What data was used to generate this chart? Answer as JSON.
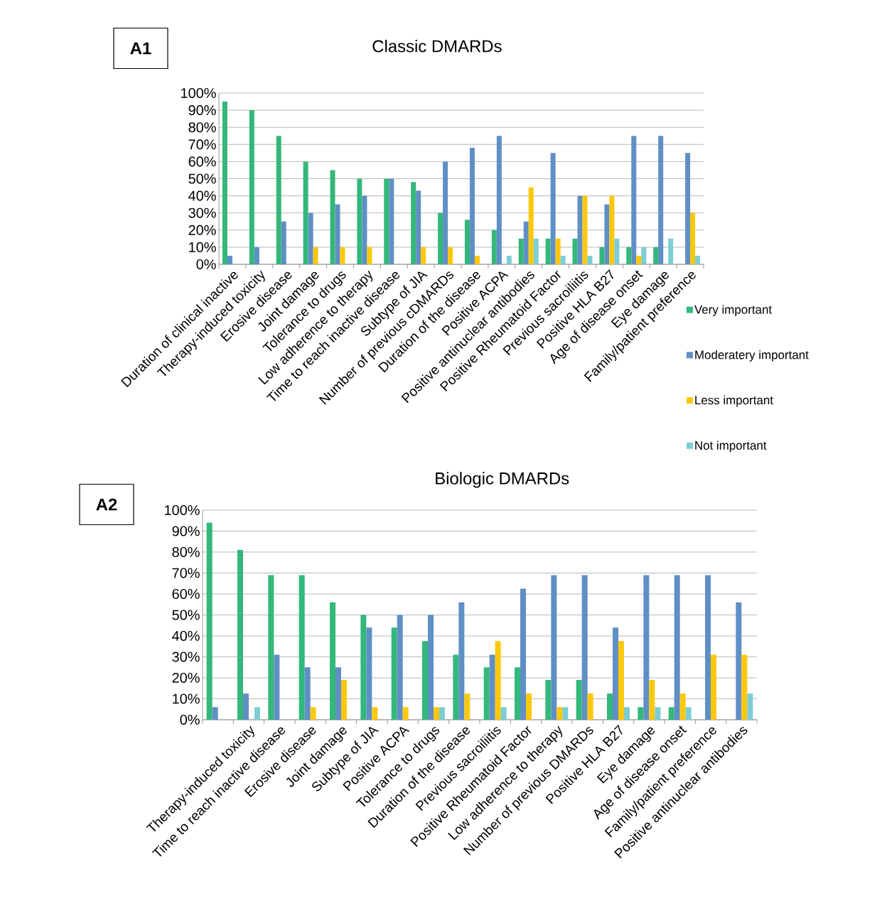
{
  "chart_data": [
    {
      "type": "bar",
      "title": "Classic DMARDs",
      "annotations": [
        "A1"
      ],
      "categories": [
        "Duration of clinical inactive",
        "Therapy-induced toxicity",
        "Erosive disease",
        "Joint damage",
        "Tolerance to drugs",
        "Low adherence to therapy",
        "Time to reach inactive disease",
        "Subtype of JIA",
        "Number of previous cDMARDs",
        "Duration of the disease",
        "Positive ACPA",
        "Positive antinuclear antibodies",
        "Positive Rheumatoid Factor",
        "Previous sacroiliitis",
        "Positive HLA B27",
        "Age of disease onset",
        "Eye damage",
        "Family/patient preference"
      ],
      "series": [
        {
          "name": "Very important",
          "color": "#33b87a",
          "values": [
            95,
            90,
            75,
            60,
            55,
            50,
            50,
            48,
            30,
            26,
            20,
            15,
            15,
            15,
            10,
            10,
            10,
            0
          ]
        },
        {
          "name": "Moderatery important",
          "color": "#5f8fc4",
          "values": [
            5,
            10,
            25,
            30,
            35,
            40,
            50,
            43,
            60,
            68,
            75,
            25,
            65,
            40,
            35,
            75,
            75,
            65
          ]
        },
        {
          "name": "Less important",
          "color": "#fcc80d",
          "values": [
            0,
            0,
            0,
            10,
            10,
            10,
            0,
            10,
            10,
            5,
            0,
            45,
            15,
            40,
            40,
            5,
            0,
            30
          ]
        },
        {
          "name": "Not important",
          "color": "#7dcdd4",
          "values": [
            0,
            0,
            0,
            0,
            0,
            0,
            0,
            0,
            0,
            0,
            5,
            15,
            5,
            5,
            15,
            10,
            15,
            5
          ]
        }
      ],
      "ylim": [
        0,
        100
      ],
      "yticks": [
        {
          "value": 0,
          "label": "0%"
        },
        {
          "value": 10,
          "label": "10%"
        },
        {
          "value": 20,
          "label": "20%"
        },
        {
          "value": 30,
          "label": "30%"
        },
        {
          "value": 40,
          "label": "40%"
        },
        {
          "value": 50,
          "label": "50%"
        },
        {
          "value": 60,
          "label": "60%"
        },
        {
          "value": 70,
          "label": "70%"
        },
        {
          "value": 80,
          "label": "80%"
        },
        {
          "value": 90,
          "label": "90%"
        },
        {
          "value": 100,
          "label": "100%"
        }
      ],
      "grid": "y",
      "legend": "bottom right"
    },
    {
      "type": "bar",
      "title": "Biologic DMARDs",
      "annotations": [
        "A2"
      ],
      "categories": [
        null,
        "Therapy-induced toxicity",
        "Time to reach inactive disease",
        "Erosive disease",
        "Joint damage",
        "Subtype of JIA",
        "Positive ACPA",
        "Tolerance to drugs",
        "Duration of the disease",
        "Previous sacroiliitis",
        "Positive Rheumatoid Factor",
        "Low adherence to therapy",
        "Number of previous DMARDs",
        "Positive HLA B27",
        "Eye damage",
        "Age of disease onset",
        "Family/patient preference",
        "Positive antinuclear antibodies"
      ],
      "series": [
        {
          "color": "#33b87a",
          "values": [
            94,
            81,
            69,
            69,
            56,
            50,
            44,
            37.5,
            31,
            25,
            25,
            19,
            19,
            12.5,
            6,
            6,
            0,
            0
          ]
        },
        {
          "color": "#5f8fc4",
          "values": [
            6,
            12.5,
            31,
            25,
            25,
            44,
            50,
            50,
            56,
            31,
            62.5,
            69,
            69,
            44,
            69,
            69,
            69,
            56
          ]
        },
        {
          "color": "#fcc80d",
          "values": [
            0,
            0,
            0,
            6,
            19,
            6,
            6,
            6,
            12.5,
            37.5,
            12.5,
            6,
            12.5,
            37.5,
            19,
            12.5,
            31,
            31
          ]
        },
        {
          "color": "#7dcdd4",
          "values": [
            0,
            6,
            0,
            0,
            0,
            0,
            0,
            6,
            0,
            6,
            0,
            6,
            0,
            6,
            6,
            6,
            0,
            12.5
          ]
        }
      ],
      "ylim": [
        0,
        100
      ],
      "yticks": [
        {
          "value": 0,
          "label": "0%"
        },
        {
          "value": 10,
          "label": "10%"
        },
        {
          "value": 20,
          "label": "20%"
        },
        {
          "value": 30,
          "label": "30%"
        },
        {
          "value": 40,
          "label": "40%"
        },
        {
          "value": 50,
          "label": "50%"
        },
        {
          "value": 60,
          "label": "60%"
        },
        {
          "value": 70,
          "label": "70%"
        },
        {
          "value": 80,
          "label": "80%"
        },
        {
          "value": 90,
          "label": "90%"
        },
        {
          "value": 100,
          "label": "100%"
        }
      ],
      "grid": "y"
    }
  ]
}
